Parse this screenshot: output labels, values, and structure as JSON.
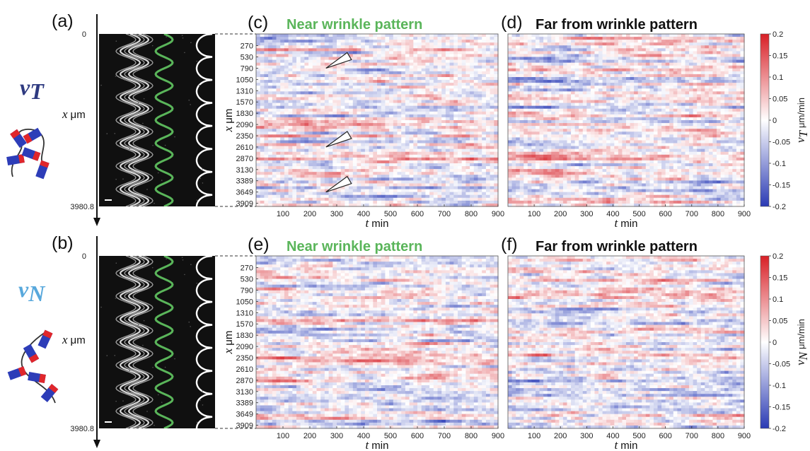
{
  "colors": {
    "positive": "#e0262b",
    "neutral": "#ffffff",
    "negative": "#2d3db8",
    "near_title": "#5ab55a",
    "vT_symbol": "#2e3a80",
    "vN_symbol": "#58a8dc",
    "kymo_bg": "#101010"
  },
  "left_panels": [
    {
      "letter": "(a)",
      "symbol": "v",
      "subscript": "T",
      "axis_top": "0",
      "axis_bottom": "3980.8",
      "axis_label_sym": "x",
      "axis_label_unit": "μm"
    },
    {
      "letter": "(b)",
      "symbol": "v",
      "subscript": "N",
      "axis_top": "0",
      "axis_bottom": "3980.8",
      "axis_label_sym": "x",
      "axis_label_unit": "μm"
    }
  ],
  "chart_data": [
    {
      "type": "heatmap",
      "panel": "(c)",
      "title": "Near wrinkle pattern",
      "xlabel_sym": "t",
      "xlabel_unit": "min",
      "ylabel_sym": "x",
      "ylabel_unit": "μm",
      "x_ticks": [
        100,
        200,
        300,
        400,
        500,
        600,
        700,
        800,
        900
      ],
      "y_ticks": [
        270,
        530,
        790,
        1050,
        1310,
        1570,
        1830,
        2090,
        2350,
        2610,
        2870,
        3130,
        3389,
        3649,
        3909
      ],
      "xlim": [
        0,
        900
      ],
      "ylim": [
        0,
        3980.8
      ],
      "markers": [
        {
          "t": 260,
          "x": 790
        },
        {
          "t": 260,
          "x": 2610
        },
        {
          "t": 260,
          "x": 3649
        }
      ]
    },
    {
      "type": "heatmap",
      "panel": "(d)",
      "title": "Far from wrinkle pattern",
      "xlabel_sym": "t",
      "xlabel_unit": "min",
      "x_ticks": [
        100,
        200,
        300,
        400,
        500,
        600,
        700,
        800,
        900
      ],
      "xlim": [
        0,
        900
      ],
      "ylim": [
        0,
        3980.8
      ],
      "colorbar": {
        "ticks": [
          0.2,
          0.15,
          0.1,
          0.05,
          0,
          -0.05,
          -0.1,
          -0.15,
          -0.2
        ],
        "label_sym": "v",
        "label_sub": "T",
        "label_unit": "μm/min",
        "range": [
          -0.2,
          0.2
        ]
      }
    },
    {
      "type": "heatmap",
      "panel": "(e)",
      "title": "Near wrinkle pattern",
      "xlabel_sym": "t",
      "xlabel_unit": "min",
      "ylabel_sym": "x",
      "ylabel_unit": "μm",
      "x_ticks": [
        100,
        200,
        300,
        400,
        500,
        600,
        700,
        800,
        900
      ],
      "y_ticks": [
        270,
        530,
        790,
        1050,
        1310,
        1570,
        1830,
        2090,
        2350,
        2610,
        2870,
        3130,
        3389,
        3649,
        3909
      ],
      "xlim": [
        0,
        900
      ],
      "ylim": [
        0,
        3980.8
      ]
    },
    {
      "type": "heatmap",
      "panel": "(f)",
      "title": "Far from wrinkle pattern",
      "xlabel_sym": "t",
      "xlabel_unit": "min",
      "x_ticks": [
        100,
        200,
        300,
        400,
        500,
        600,
        700,
        800,
        900
      ],
      "xlim": [
        0,
        900
      ],
      "ylim": [
        0,
        3980.8
      ],
      "colorbar": {
        "ticks": [
          0.2,
          0.15,
          0.1,
          0.05,
          0,
          -0.05,
          -0.1,
          -0.15,
          -0.2
        ],
        "label_sym": "v",
        "label_sub": "N",
        "label_unit": "μm/min",
        "range": [
          -0.2,
          0.2
        ]
      }
    }
  ]
}
